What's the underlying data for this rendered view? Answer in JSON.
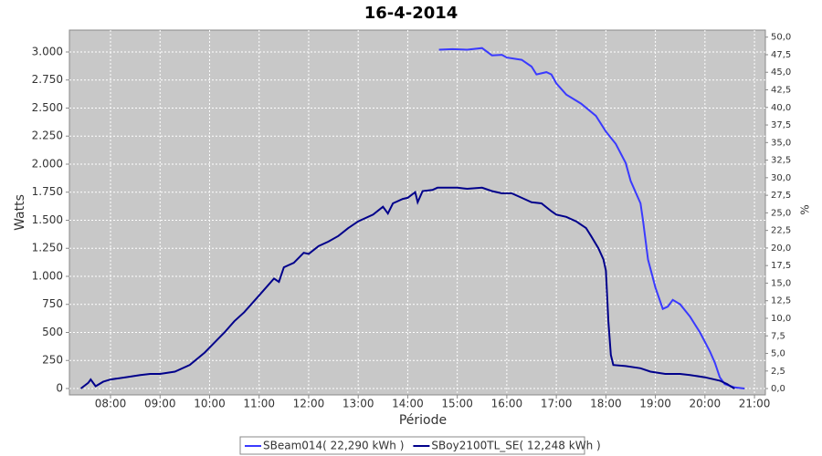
{
  "chart_data": {
    "type": "line",
    "title": "16-4-2014",
    "xlabel": "Période",
    "ylabel": "Watts",
    "y2label": "%",
    "grid": true,
    "legend": "bottom",
    "xlim": [
      7.17,
      21.22
    ],
    "xticks": [
      {
        "value": 8,
        "label": "08:00"
      },
      {
        "value": 9,
        "label": "09:00"
      },
      {
        "value": 10,
        "label": "10:00"
      },
      {
        "value": 11,
        "label": "11:00"
      },
      {
        "value": 12,
        "label": "12:00"
      },
      {
        "value": 13,
        "label": "13:00"
      },
      {
        "value": 14,
        "label": "14:00"
      },
      {
        "value": 15,
        "label": "15:00"
      },
      {
        "value": 16,
        "label": "16:00"
      },
      {
        "value": 17,
        "label": "17:00"
      },
      {
        "value": 18,
        "label": "18:00"
      },
      {
        "value": 19,
        "label": "19:00"
      },
      {
        "value": 20,
        "label": "20:00"
      },
      {
        "value": 21,
        "label": "21:00"
      }
    ],
    "ylim": [
      -57,
      3195
    ],
    "yticks": [
      0,
      250,
      500,
      750,
      {
        "value": 1000,
        "label": "1.000"
      },
      {
        "value": 1250,
        "label": "1.250"
      },
      {
        "value": 1500,
        "label": "1.500"
      },
      {
        "value": 1750,
        "label": "1.750"
      },
      {
        "value": 2000,
        "label": "2.000"
      },
      {
        "value": 2250,
        "label": "2.250"
      },
      {
        "value": 2500,
        "label": "2.500"
      },
      {
        "value": 2750,
        "label": "2.750"
      },
      {
        "value": 3000,
        "label": "3.000"
      }
    ],
    "y2lim": [
      -0.9,
      51.0
    ],
    "y2ticks": [
      {
        "value": 0,
        "label": "0,0"
      },
      {
        "value": 2.5,
        "label": "2,5"
      },
      {
        "value": 5,
        "label": "5,0"
      },
      {
        "value": 7.5,
        "label": "7,5"
      },
      {
        "value": 10,
        "label": "10,0"
      },
      {
        "value": 12.5,
        "label": "12,5"
      },
      {
        "value": 15,
        "label": "15,0"
      },
      {
        "value": 17.5,
        "label": "17,5"
      },
      {
        "value": 20,
        "label": "20,0"
      },
      {
        "value": 22.5,
        "label": "22,5"
      },
      {
        "value": 25,
        "label": "25,0"
      },
      {
        "value": 27.5,
        "label": "27,5"
      },
      {
        "value": 30,
        "label": "30,0"
      },
      {
        "value": 32.5,
        "label": "32,5"
      },
      {
        "value": 35,
        "label": "35,0"
      },
      {
        "value": 37.5,
        "label": "37,5"
      },
      {
        "value": 40,
        "label": "40,0"
      },
      {
        "value": 42.5,
        "label": "42,5"
      },
      {
        "value": 45,
        "label": "45,0"
      },
      {
        "value": 47.5,
        "label": "47,5"
      },
      {
        "value": 50,
        "label": "50,0"
      }
    ],
    "series": [
      {
        "name": "SBeam014( 22,290 kWh )",
        "color": "#3a3aff",
        "x": [
          14.63,
          14.9,
          15.2,
          15.5,
          15.7,
          15.9,
          16.0,
          16.3,
          16.5,
          16.6,
          16.8,
          16.9,
          17.0,
          17.2,
          17.5,
          17.8,
          18.0,
          18.2,
          18.4,
          18.5,
          18.6,
          18.7,
          18.75,
          18.85,
          19.0,
          19.15,
          19.25,
          19.35,
          19.5,
          19.7,
          19.9,
          20.1,
          20.2,
          20.3,
          20.4,
          20.6,
          20.8
        ],
        "values": [
          3020,
          3025,
          3020,
          3035,
          2970,
          2975,
          2950,
          2930,
          2870,
          2800,
          2820,
          2800,
          2720,
          2620,
          2540,
          2430,
          2290,
          2180,
          2010,
          1850,
          1750,
          1650,
          1500,
          1150,
          900,
          710,
          730,
          790,
          750,
          640,
          500,
          330,
          230,
          100,
          40,
          10,
          0
        ]
      },
      {
        "name": "SBoy2100TL_SE( 12,248 kWh )",
        "color": "#00008b",
        "x": [
          7.4,
          7.55,
          7.6,
          7.7,
          7.85,
          8.0,
          8.3,
          8.6,
          8.8,
          9.0,
          9.3,
          9.6,
          9.9,
          10.1,
          10.3,
          10.5,
          10.7,
          11.0,
          11.2,
          11.3,
          11.4,
          11.5,
          11.7,
          11.9,
          12.0,
          12.2,
          12.4,
          12.6,
          12.8,
          13.0,
          13.3,
          13.5,
          13.6,
          13.7,
          13.9,
          14.0,
          14.15,
          14.2,
          14.3,
          14.5,
          14.6,
          14.8,
          15.0,
          15.2,
          15.5,
          15.7,
          15.9,
          16.1,
          16.3,
          16.5,
          16.7,
          16.9,
          17.0,
          17.2,
          17.4,
          17.6,
          17.7,
          17.85,
          17.95,
          18.0,
          18.05,
          18.1,
          18.15,
          18.4,
          18.7,
          18.9,
          19.2,
          19.5,
          19.7,
          20.0,
          20.3,
          20.45,
          20.55,
          20.6
        ],
        "values": [
          0,
          50,
          80,
          20,
          60,
          80,
          100,
          120,
          130,
          130,
          150,
          210,
          320,
          410,
          500,
          600,
          680,
          830,
          930,
          980,
          950,
          1080,
          1120,
          1210,
          1200,
          1270,
          1310,
          1360,
          1430,
          1490,
          1550,
          1620,
          1560,
          1650,
          1690,
          1700,
          1750,
          1660,
          1760,
          1770,
          1790,
          1790,
          1790,
          1780,
          1790,
          1760,
          1740,
          1740,
          1700,
          1660,
          1650,
          1580,
          1550,
          1530,
          1490,
          1430,
          1360,
          1250,
          1150,
          1050,
          600,
          300,
          210,
          200,
          180,
          150,
          130,
          130,
          120,
          100,
          70,
          40,
          10,
          0
        ]
      }
    ]
  }
}
